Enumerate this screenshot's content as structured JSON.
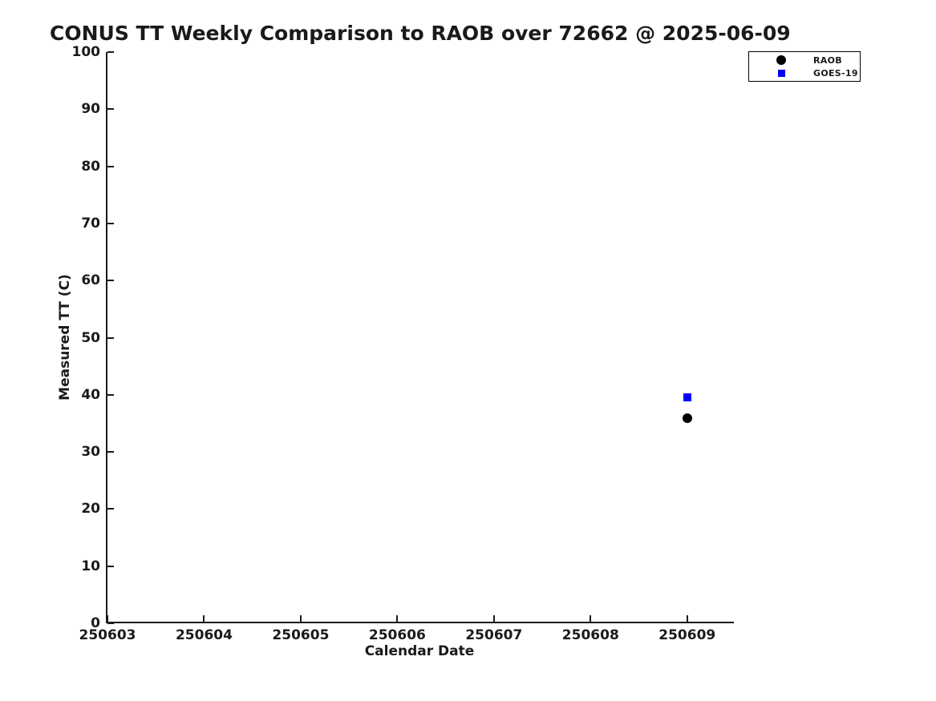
{
  "chart_data": {
    "type": "scatter",
    "title": "CONUS TT Weekly Comparison to RAOB over 72662 @ 2025-06-09",
    "xlabel": "Calendar Date",
    "ylabel": "Measured TT (C)",
    "xlim": [
      250603,
      250609.5
    ],
    "ylim": [
      0,
      100
    ],
    "x_ticks": [
      250603,
      250604,
      250605,
      250606,
      250607,
      250608,
      250609
    ],
    "y_ticks": [
      0,
      10,
      20,
      30,
      40,
      50,
      60,
      70,
      80,
      90,
      100
    ],
    "grid": false,
    "legend_position": "top-right",
    "axis_color": "#1a1a1a",
    "background_color": "#ffffff",
    "series": [
      {
        "name": "RAOB",
        "marker": "circle",
        "color": "#000000",
        "points": [
          {
            "x": 250609,
            "y": 35.9
          }
        ]
      },
      {
        "name": "GOES-19",
        "marker": "square",
        "color": "#0000ff",
        "points": [
          {
            "x": 250609,
            "y": 39.5
          }
        ]
      }
    ]
  }
}
